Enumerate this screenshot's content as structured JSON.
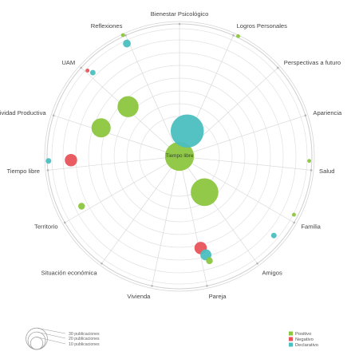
{
  "chart_data": {
    "type": "radial-bubble",
    "center_label": "Tiempo libre",
    "axes": [
      "Bienestar Psicológico",
      "Logros Personales",
      "Perspectivas a futuro",
      "Apariencia",
      "Salud",
      "Familia",
      "Amigos",
      "Pareja",
      "Vivienda",
      "Situación económica",
      "Territorio",
      "Tiempo libre",
      "Actividad Productiva",
      "UAM",
      "Reflexiones"
    ],
    "series": [
      {
        "name": "Positivo",
        "color": "#8cc63f"
      },
      {
        "name": "Negativo",
        "color": "#e8545a"
      },
      {
        "name": "Declarativo",
        "color": "#4bbfbf"
      }
    ],
    "bubbles": [
      {
        "series": "Positivo",
        "angle": 0,
        "r": 0,
        "size": 55
      },
      {
        "series": "Declarativo",
        "angle": 17,
        "r": 0.2,
        "size": 72
      },
      {
        "series": "Positivo",
        "angle": 145,
        "r": 0.33,
        "size": 50
      },
      {
        "series": "Positivo",
        "angle": 314,
        "r": 0.54,
        "size": 29
      },
      {
        "series": "Positivo",
        "angle": 290,
        "r": 0.63,
        "size": 24
      },
      {
        "series": "Negativo",
        "angle": 268,
        "r": 0.82,
        "size": 10
      },
      {
        "series": "Declarativo",
        "angle": 268,
        "r": 0.99,
        "size": 2
      },
      {
        "series": "Declarativo",
        "angle": 335,
        "r": 0.94,
        "size": 4
      },
      {
        "series": "Positivo",
        "angle": 335,
        "r": 1.01,
        "size": 1
      },
      {
        "series": "Declarativo",
        "angle": 314,
        "r": 0.91,
        "size": 2
      },
      {
        "series": "Negativo",
        "angle": 313,
        "r": 0.95,
        "size": 1
      },
      {
        "series": "Positivo",
        "angle": 243,
        "r": 0.83,
        "size": 3
      },
      {
        "series": "Negativo",
        "angle": 167,
        "r": 0.71,
        "size": 10
      },
      {
        "series": "Declarativo",
        "angle": 165,
        "r": 0.77,
        "size": 8
      },
      {
        "series": "Positivo",
        "angle": 164,
        "r": 0.82,
        "size": 3
      },
      {
        "series": "Declarativo",
        "angle": 130,
        "r": 0.93,
        "size": 2
      },
      {
        "series": "Positivo",
        "angle": 117,
        "r": 0.97,
        "size": 1
      },
      {
        "series": "Positivo",
        "angle": 92,
        "r": 0.98,
        "size": 1
      },
      {
        "series": "Positivo",
        "angle": 26,
        "r": 1.01,
        "size": 1
      }
    ],
    "legend": {
      "position": "bottom-right",
      "items": [
        "Positivo",
        "Negativo",
        "Declarativo"
      ]
    },
    "size_legend": {
      "position": "bottom-left",
      "items": [
        "30 publicaciones",
        "20 publicaciones",
        "10 publicaciones"
      ],
      "values": [
        30,
        20,
        10
      ]
    },
    "grid": true
  }
}
